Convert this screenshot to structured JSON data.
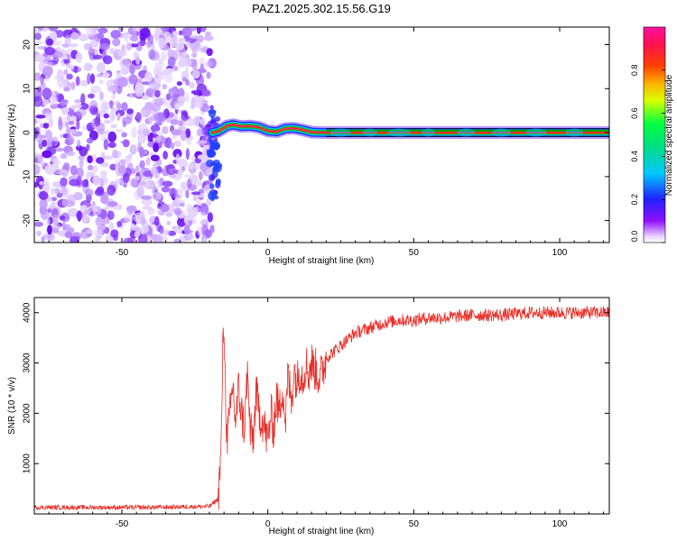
{
  "title": "PAZ1.2025.302.15.56.G19",
  "colors": {
    "axis": "#000000",
    "snr_line": "#e8302a",
    "spectrogram_ridge": "#00a000"
  },
  "chart_data": [
    {
      "type": "heatmap",
      "name": "spectrogram",
      "xlabel": "Height of straight line (km)",
      "ylabel": "Frequency (Hz)",
      "xlim": [
        -80,
        117
      ],
      "ylim": [
        -25,
        24
      ],
      "xticks": [
        -50,
        0,
        50,
        100
      ],
      "yticks": [
        -20,
        -10,
        0,
        10,
        20
      ],
      "noise_region_x": [
        -80,
        -19
      ],
      "signal_region_x": [
        -19,
        117
      ],
      "signal_track": [
        {
          "x": -19,
          "y": 0.0
        },
        {
          "x": -17,
          "y": 0.3
        },
        {
          "x": -14,
          "y": 1.5
        },
        {
          "x": -12,
          "y": 1.8
        },
        {
          "x": -9,
          "y": 1.4
        },
        {
          "x": -6,
          "y": 1.5
        },
        {
          "x": -3,
          "y": 1.2
        },
        {
          "x": 0,
          "y": 0.4
        },
        {
          "x": 3,
          "y": 0.2
        },
        {
          "x": 6,
          "y": 0.9
        },
        {
          "x": 9,
          "y": 1.0
        },
        {
          "x": 12,
          "y": 0.6
        },
        {
          "x": 15,
          "y": 0.1
        },
        {
          "x": 20,
          "y": 0.0
        },
        {
          "x": 40,
          "y": 0.0
        },
        {
          "x": 117,
          "y": 0.0
        }
      ]
    },
    {
      "type": "colorbar",
      "name": "colorbar",
      "label": "Normalized spectral amplitude",
      "range": [
        0,
        1
      ],
      "ticks": [
        "0.0",
        "0.2",
        "0.4",
        "0.6",
        "0.8"
      ],
      "tick_values": [
        0.0,
        0.2,
        0.4,
        0.6,
        0.8
      ],
      "colormap": [
        "#ffffff",
        "#9010ff",
        "#2020ff",
        "#00c8ff",
        "#00ff40",
        "#ffff00",
        "#ff4000",
        "#ff1090"
      ]
    },
    {
      "type": "line",
      "name": "snr",
      "xlabel": "Height of straight line (km)",
      "ylabel": "SNR (10 * v/v)",
      "xlim": [
        -80,
        117
      ],
      "ylim": [
        0,
        4300
      ],
      "xticks": [
        -50,
        0,
        50,
        100
      ],
      "yticks": [
        1000,
        2000,
        3000,
        4000
      ],
      "series": [
        {
          "name": "SNR",
          "x": [
            -80,
            -70,
            -60,
            -50,
            -40,
            -30,
            -20,
            -17,
            -16,
            -15.5,
            -15,
            -14.5,
            -14,
            -13,
            -12,
            -11,
            -10,
            -9,
            -8,
            -7,
            -6,
            -5,
            -4,
            -3,
            -2,
            -1,
            0,
            1,
            2,
            3,
            4,
            5,
            6,
            7,
            8,
            9,
            10,
            11,
            12,
            13,
            14,
            15,
            16,
            18,
            20,
            22,
            24,
            26,
            28,
            30,
            35,
            40,
            45,
            50,
            55,
            60,
            70,
            80,
            90,
            100,
            110,
            117
          ],
          "y": [
            130,
            130,
            130,
            130,
            130,
            140,
            150,
            300,
            1200,
            3000,
            3800,
            2500,
            1500,
            1900,
            2600,
            1800,
            2500,
            2000,
            1700,
            2800,
            1600,
            1500,
            2400,
            2000,
            1900,
            1700,
            1400,
            2000,
            1700,
            2300,
            2000,
            2600,
            1800,
            2800,
            2200,
            2900,
            2600,
            2900,
            2700,
            3000,
            2800,
            3000,
            2900,
            2700,
            3100,
            3200,
            3300,
            3400,
            3500,
            3600,
            3700,
            3800,
            3850,
            3850,
            3900,
            3900,
            3950,
            3950,
            4000,
            4000,
            4000,
            4000
          ]
        }
      ]
    }
  ]
}
